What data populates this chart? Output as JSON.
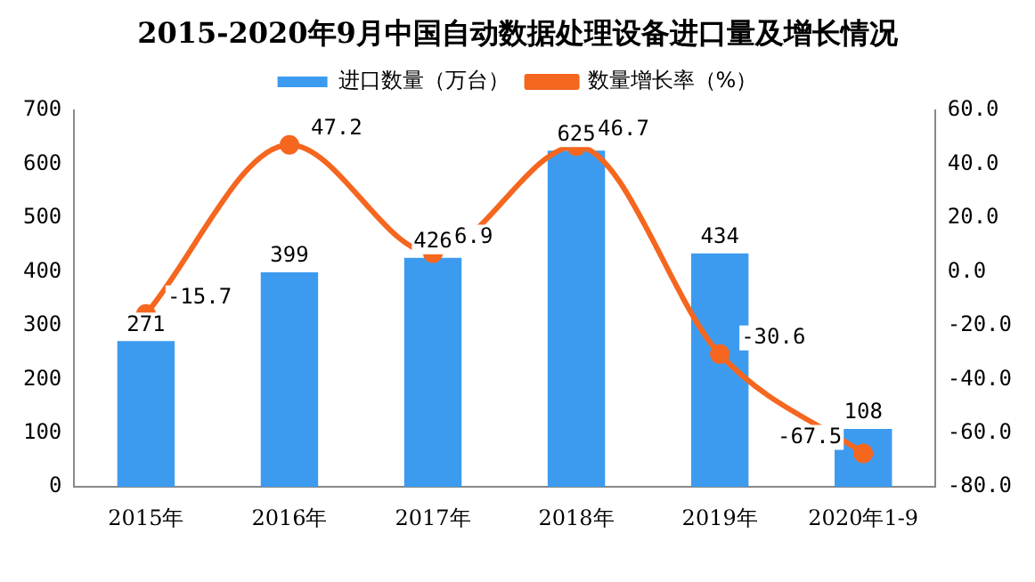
{
  "chart_data": {
    "type": "bar",
    "title": "2015-2020年9月中国自动数据处理设备进口量及增长情况",
    "categories": [
      "2015年",
      "2016年",
      "2017年",
      "2018年",
      "2019年",
      "2020年1-9"
    ],
    "series": [
      {
        "name": "进口数量（万台）",
        "color": "#3d9bef",
        "values": [
          271,
          399,
          426,
          625,
          434,
          108
        ]
      },
      {
        "name": "数量增长率（%）",
        "type": "line",
        "axis": "y2",
        "color": "#f5661f",
        "values": [
          -15.7,
          47.2,
          6.9,
          46.7,
          -30.6,
          -67.5
        ]
      }
    ],
    "ylim": [
      0,
      700
    ],
    "yticks": [
      0,
      100,
      200,
      300,
      400,
      500,
      600,
      700
    ],
    "y2lim": [
      -80,
      60
    ],
    "y2ticks": [
      {
        "value": -80,
        "label": "-80.0"
      },
      {
        "value": -60,
        "label": "-60.0"
      },
      {
        "value": -40,
        "label": "-40.0"
      },
      {
        "value": -20,
        "label": "-20.0"
      },
      {
        "value": 0,
        "label": "0.0"
      },
      {
        "value": 20,
        "label": "20.0"
      },
      {
        "value": 40,
        "label": "40.0"
      },
      {
        "value": 60,
        "label": "60.0"
      }
    ],
    "data_labels": true,
    "legend": "top",
    "grid": false,
    "marker": "circle"
  }
}
